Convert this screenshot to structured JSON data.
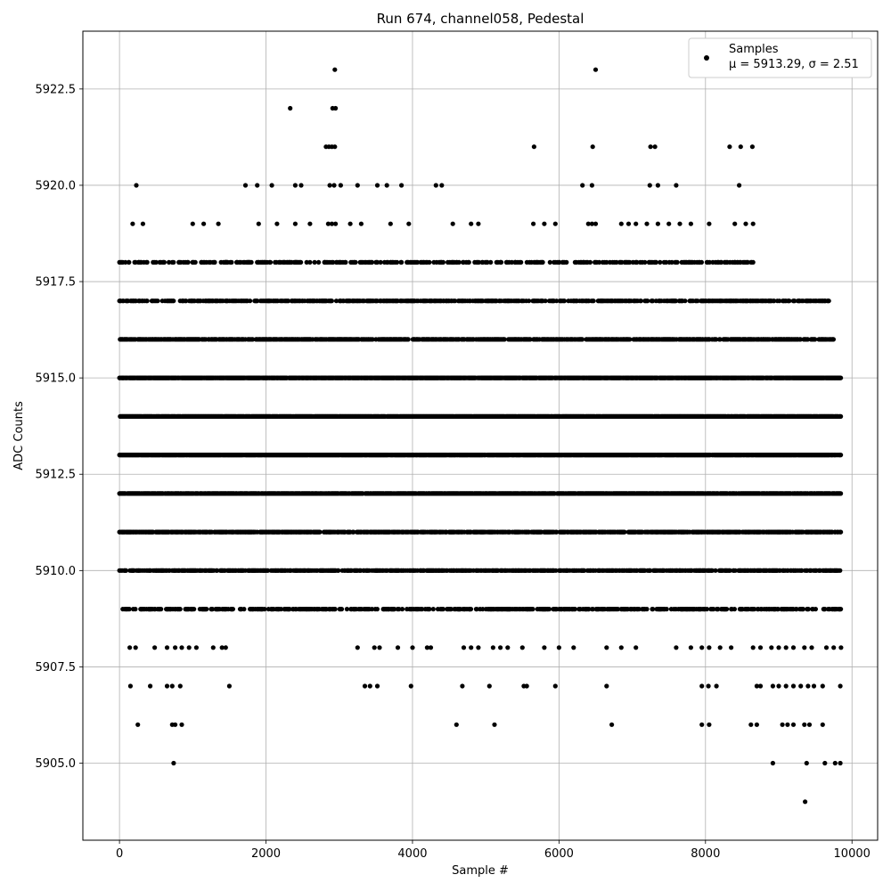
{
  "chart_data": {
    "type": "scatter",
    "title": "Run 674, channel058, Pedestal",
    "xlabel": "Sample #",
    "ylabel": "ADC Counts",
    "xlim": [
      -500,
      10350
    ],
    "ylim": [
      5903.0,
      5924.0
    ],
    "xticks": [
      0,
      2000,
      4000,
      6000,
      8000,
      10000
    ],
    "xtick_labels": [
      "0",
      "2000",
      "4000",
      "6000",
      "8000",
      "10000"
    ],
    "yticks": [
      5905.0,
      5907.5,
      5910.0,
      5912.5,
      5915.0,
      5917.5,
      5920.0,
      5922.5
    ],
    "ytick_labels": [
      "5905.0",
      "5907.5",
      "5910.0",
      "5912.5",
      "5915.0",
      "5917.5",
      "5920.0",
      "5922.5"
    ],
    "grid": true,
    "legend": {
      "placement": "top-right",
      "entries": [
        "Samples",
        "μ = 5913.29, σ = 2.51"
      ]
    },
    "marker_color": "#000000",
    "series": [
      {
        "name": "Samples",
        "levels": [
          {
            "y": 5917,
            "ranges": [
              [
                0,
                9700
              ]
            ],
            "density": 0.55
          },
          {
            "y": 5916,
            "ranges": [
              [
                0,
                9750
              ]
            ],
            "density": 0.7
          },
          {
            "y": 5915,
            "ranges": [
              [
                0,
                9850
              ]
            ],
            "density": 0.9
          },
          {
            "y": 5914,
            "ranges": [
              [
                0,
                9850
              ]
            ],
            "density": 0.95
          },
          {
            "y": 5913,
            "ranges": [
              [
                0,
                9850
              ]
            ],
            "density": 0.95
          },
          {
            "y": 5912,
            "ranges": [
              [
                0,
                9850
              ]
            ],
            "density": 0.85
          },
          {
            "y": 5911,
            "ranges": [
              [
                0,
                9850
              ]
            ],
            "density": 0.7
          },
          {
            "y": 5910,
            "ranges": [
              [
                0,
                9850
              ]
            ],
            "density": 0.6
          },
          {
            "y": 5909,
            "ranges": [
              [
                0,
                9850
              ]
            ],
            "density": 0.45
          },
          {
            "y": 5918,
            "ranges": [
              [
                0,
                8650
              ]
            ],
            "density": 0.3
          }
        ],
        "points": [
          [
            0,
            5918
          ],
          [
            130,
            5918
          ],
          [
            220,
            5918
          ],
          [
            260,
            5918
          ],
          [
            500,
            5918
          ],
          [
            600,
            5918
          ],
          [
            900,
            5918
          ],
          [
            1000,
            5918
          ],
          [
            1150,
            5918
          ],
          [
            1300,
            5918
          ],
          [
            1450,
            5918
          ],
          [
            1600,
            5918
          ],
          [
            1750,
            5918
          ],
          [
            1900,
            5918
          ],
          [
            2050,
            5918
          ],
          [
            2200,
            5918
          ],
          [
            2400,
            5918
          ],
          [
            2600,
            5918
          ],
          [
            2800,
            5918
          ],
          [
            3000,
            5918
          ],
          [
            3200,
            5918
          ],
          [
            3350,
            5918
          ],
          [
            3650,
            5918
          ],
          [
            3850,
            5918
          ],
          [
            4200,
            5918
          ],
          [
            4400,
            5918
          ],
          [
            4600,
            5918
          ],
          [
            4850,
            5918
          ],
          [
            5200,
            5918
          ],
          [
            5400,
            5918
          ],
          [
            5700,
            5918
          ],
          [
            6000,
            5918
          ],
          [
            6300,
            5918
          ],
          [
            6550,
            5918
          ],
          [
            6900,
            5918
          ],
          [
            7300,
            5918
          ],
          [
            7600,
            5918
          ],
          [
            7850,
            5918
          ],
          [
            8100,
            5918
          ],
          [
            8400,
            5918
          ],
          [
            8650,
            5918
          ],
          [
            180,
            5919
          ],
          [
            320,
            5919
          ],
          [
            1000,
            5919
          ],
          [
            1150,
            5919
          ],
          [
            1350,
            5919
          ],
          [
            1900,
            5919
          ],
          [
            2150,
            5919
          ],
          [
            2400,
            5919
          ],
          [
            2600,
            5919
          ],
          [
            2850,
            5919
          ],
          [
            2900,
            5919
          ],
          [
            2950,
            5919
          ],
          [
            3150,
            5919
          ],
          [
            3300,
            5919
          ],
          [
            3700,
            5919
          ],
          [
            3950,
            5919
          ],
          [
            4550,
            5919
          ],
          [
            4800,
            5919
          ],
          [
            4900,
            5919
          ],
          [
            5650,
            5919
          ],
          [
            5800,
            5919
          ],
          [
            5950,
            5919
          ],
          [
            6400,
            5919
          ],
          [
            6450,
            5919
          ],
          [
            6500,
            5919
          ],
          [
            6850,
            5919
          ],
          [
            6950,
            5919
          ],
          [
            7050,
            5919
          ],
          [
            7200,
            5919
          ],
          [
            7350,
            5919
          ],
          [
            7500,
            5919
          ],
          [
            7650,
            5919
          ],
          [
            7800,
            5919
          ],
          [
            8050,
            5919
          ],
          [
            8400,
            5919
          ],
          [
            8550,
            5919
          ],
          [
            8650,
            5919
          ],
          [
            230,
            5920
          ],
          [
            1720,
            5920
          ],
          [
            1880,
            5920
          ],
          [
            2080,
            5920
          ],
          [
            2400,
            5920
          ],
          [
            2480,
            5920
          ],
          [
            2870,
            5920
          ],
          [
            2930,
            5920
          ],
          [
            3020,
            5920
          ],
          [
            3250,
            5920
          ],
          [
            3520,
            5920
          ],
          [
            3650,
            5920
          ],
          [
            3850,
            5920
          ],
          [
            4320,
            5920
          ],
          [
            4400,
            5920
          ],
          [
            6320,
            5920
          ],
          [
            6450,
            5920
          ],
          [
            7240,
            5920
          ],
          [
            7350,
            5920
          ],
          [
            7600,
            5920
          ],
          [
            8460,
            5920
          ],
          [
            2820,
            5921
          ],
          [
            2860,
            5921
          ],
          [
            2900,
            5921
          ],
          [
            2940,
            5921
          ],
          [
            5660,
            5921
          ],
          [
            6460,
            5921
          ],
          [
            7250,
            5921
          ],
          [
            7310,
            5921
          ],
          [
            8330,
            5921
          ],
          [
            8480,
            5921
          ],
          [
            8640,
            5921
          ],
          [
            2330,
            5922
          ],
          [
            2910,
            5922
          ],
          [
            2950,
            5922
          ],
          [
            2940,
            5923
          ],
          [
            6500,
            5923
          ],
          [
            140,
            5908
          ],
          [
            220,
            5908
          ],
          [
            480,
            5908
          ],
          [
            650,
            5908
          ],
          [
            760,
            5908
          ],
          [
            850,
            5908
          ],
          [
            950,
            5908
          ],
          [
            1050,
            5908
          ],
          [
            1280,
            5908
          ],
          [
            1400,
            5908
          ],
          [
            1450,
            5908
          ],
          [
            3250,
            5908
          ],
          [
            3480,
            5908
          ],
          [
            3550,
            5908
          ],
          [
            3800,
            5908
          ],
          [
            4000,
            5908
          ],
          [
            4200,
            5908
          ],
          [
            4250,
            5908
          ],
          [
            4700,
            5908
          ],
          [
            4800,
            5908
          ],
          [
            4900,
            5908
          ],
          [
            5100,
            5908
          ],
          [
            5200,
            5908
          ],
          [
            5300,
            5908
          ],
          [
            5500,
            5908
          ],
          [
            5800,
            5908
          ],
          [
            6000,
            5908
          ],
          [
            6200,
            5908
          ],
          [
            6650,
            5908
          ],
          [
            6850,
            5908
          ],
          [
            7050,
            5908
          ],
          [
            7600,
            5908
          ],
          [
            7800,
            5908
          ],
          [
            7950,
            5908
          ],
          [
            8050,
            5908
          ],
          [
            8200,
            5908
          ],
          [
            8350,
            5908
          ],
          [
            8650,
            5908
          ],
          [
            8750,
            5908
          ],
          [
            8900,
            5908
          ],
          [
            9000,
            5908
          ],
          [
            9100,
            5908
          ],
          [
            9200,
            5908
          ],
          [
            9350,
            5908
          ],
          [
            9450,
            5908
          ],
          [
            9650,
            5908
          ],
          [
            9750,
            5908
          ],
          [
            9850,
            5908
          ],
          [
            150,
            5907
          ],
          [
            420,
            5907
          ],
          [
            650,
            5907
          ],
          [
            720,
            5907
          ],
          [
            830,
            5907
          ],
          [
            1500,
            5907
          ],
          [
            3350,
            5907
          ],
          [
            3420,
            5907
          ],
          [
            3520,
            5907
          ],
          [
            3980,
            5907
          ],
          [
            4680,
            5907
          ],
          [
            5050,
            5907
          ],
          [
            5520,
            5907
          ],
          [
            5560,
            5907
          ],
          [
            5950,
            5907
          ],
          [
            6650,
            5907
          ],
          [
            7950,
            5907
          ],
          [
            8040,
            5907
          ],
          [
            8150,
            5907
          ],
          [
            8700,
            5907
          ],
          [
            8750,
            5907
          ],
          [
            8920,
            5907
          ],
          [
            9000,
            5907
          ],
          [
            9100,
            5907
          ],
          [
            9200,
            5907
          ],
          [
            9300,
            5907
          ],
          [
            9400,
            5907
          ],
          [
            9480,
            5907
          ],
          [
            9600,
            5907
          ],
          [
            9840,
            5907
          ],
          [
            250,
            5906
          ],
          [
            720,
            5906
          ],
          [
            760,
            5906
          ],
          [
            850,
            5906
          ],
          [
            4600,
            5906
          ],
          [
            5120,
            5906
          ],
          [
            6720,
            5906
          ],
          [
            7950,
            5906
          ],
          [
            8050,
            5906
          ],
          [
            8620,
            5906
          ],
          [
            8700,
            5906
          ],
          [
            9050,
            5906
          ],
          [
            9120,
            5906
          ],
          [
            9200,
            5906
          ],
          [
            9350,
            5906
          ],
          [
            9420,
            5906
          ],
          [
            9600,
            5906
          ],
          [
            740,
            5905
          ],
          [
            8920,
            5905
          ],
          [
            9380,
            5905
          ],
          [
            9630,
            5905
          ],
          [
            9770,
            5905
          ],
          [
            9840,
            5905
          ],
          [
            9360,
            5904
          ]
        ]
      }
    ]
  }
}
